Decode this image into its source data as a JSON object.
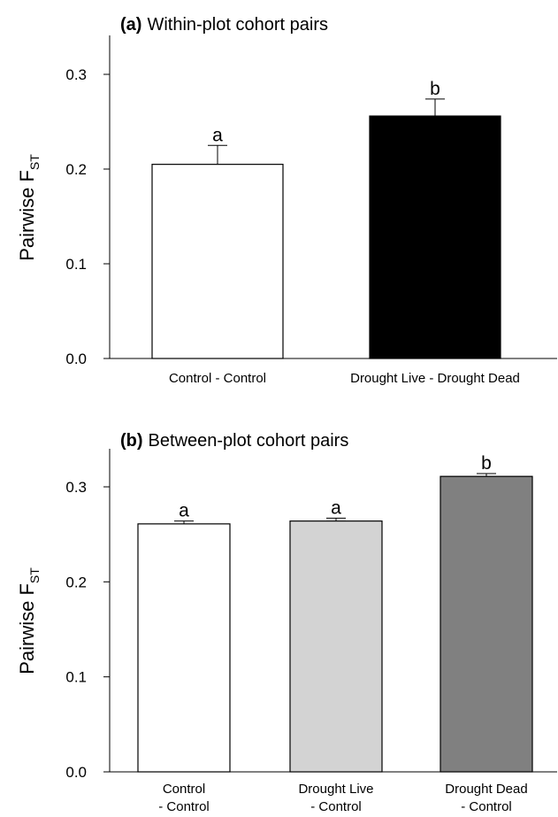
{
  "chart_data": [
    {
      "type": "bar",
      "panel_letter": "(a)",
      "title": "Within-plot cohort pairs",
      "ylabel_main": "Pairwise F",
      "ylabel_sub": "ST",
      "ylim": [
        0,
        0.34
      ],
      "yticks": [
        "0.0",
        "0.1",
        "0.2",
        "0.3"
      ],
      "grid": false,
      "categories": [
        [
          "Control - Control"
        ],
        [
          "Drought Live - Drought Dead"
        ]
      ],
      "values": [
        0.205,
        0.256
      ],
      "errors": [
        0.02,
        0.018
      ],
      "significance": [
        "a",
        "b"
      ],
      "colors": [
        "#ffffff",
        "#000000"
      ]
    },
    {
      "type": "bar",
      "panel_letter": "(b)",
      "title": "Between-plot cohort pairs",
      "ylabel_main": "Pairwise F",
      "ylabel_sub": "ST",
      "ylim": [
        0,
        0.34
      ],
      "yticks": [
        "0.0",
        "0.1",
        "0.2",
        "0.3"
      ],
      "grid": false,
      "categories": [
        [
          "Control",
          "- Control"
        ],
        [
          "Drought Live",
          "- Control"
        ],
        [
          "Drought Dead",
          "- Control"
        ]
      ],
      "values": [
        0.261,
        0.264,
        0.311
      ],
      "errors": [
        0.003,
        0.003,
        0.003
      ],
      "significance": [
        "a",
        "a",
        "b"
      ],
      "colors": [
        "#ffffff",
        "#d3d3d3",
        "#808080"
      ]
    }
  ]
}
